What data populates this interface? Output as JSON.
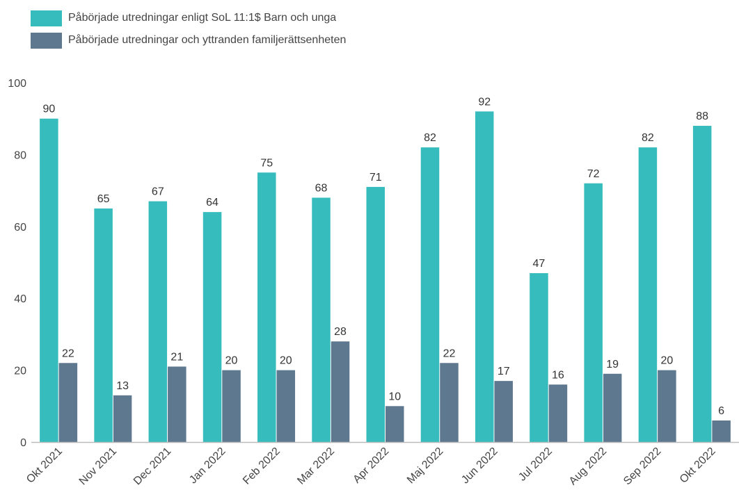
{
  "legend": {
    "series_a_label": "Påbörjade utredningar enligt SoL 11:1$ Barn och unga",
    "series_b_label": "Påbörjade utredningar och yttranden familjerättsenheten"
  },
  "colors": {
    "series_a": "#36BCBC",
    "series_b": "#5E7890",
    "axis": "#BBBBBB"
  },
  "chart_data": {
    "type": "bar",
    "categories": [
      "Okt 2021",
      "Nov 2021",
      "Dec 2021",
      "Jan 2022",
      "Feb 2022",
      "Mar 2022",
      "Apr 2022",
      "Maj 2022",
      "Jun 2022",
      "Jul 2022",
      "Aug 2022",
      "Sep 2022",
      "Okt 2022"
    ],
    "series": [
      {
        "name": "Påbörjade utredningar enligt SoL 11:1$ Barn och unga",
        "values": [
          90,
          65,
          67,
          64,
          75,
          68,
          71,
          82,
          92,
          47,
          72,
          82,
          88
        ]
      },
      {
        "name": "Påbörjade utredningar och yttranden familjerättsenheten",
        "values": [
          22,
          13,
          21,
          20,
          20,
          28,
          10,
          22,
          17,
          16,
          19,
          20,
          6
        ]
      }
    ],
    "ylim": [
      0,
      100
    ],
    "yticks": [
      0,
      20,
      40,
      60,
      80,
      100
    ],
    "xlabel": "",
    "ylabel": "",
    "grid": false,
    "legend_position": "top-left"
  }
}
